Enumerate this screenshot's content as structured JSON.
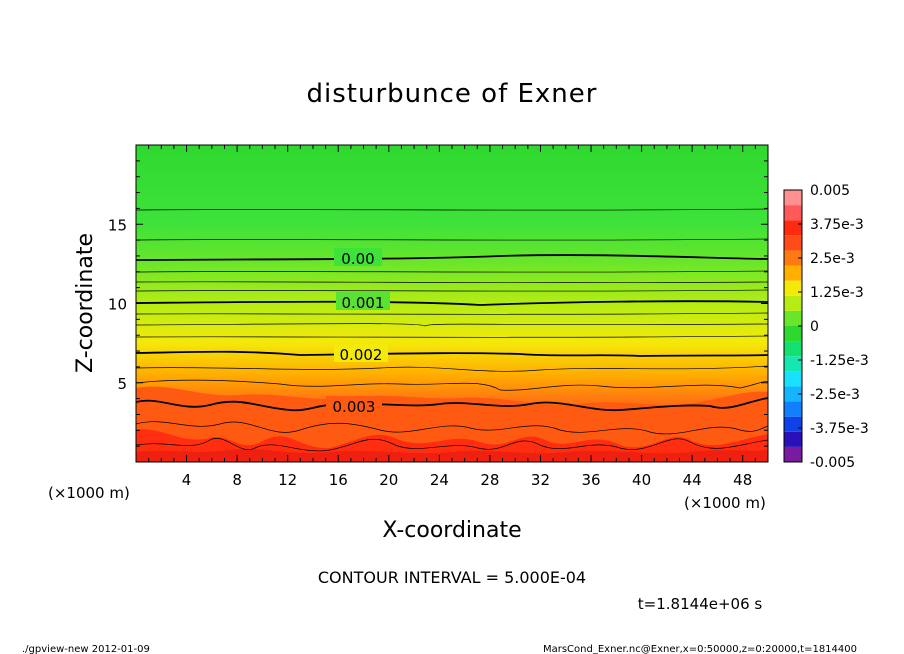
{
  "chart_data": {
    "type": "contour",
    "title": "disturbunce of Exner",
    "xlabel": "X-coordinate",
    "ylabel": "Z-coordinate",
    "x_unit": "(×1000 m)",
    "y_unit": "(×1000 m)",
    "xlim": [
      0,
      50
    ],
    "ylim": [
      0,
      20
    ],
    "x_ticks": [
      4,
      8,
      12,
      16,
      20,
      24,
      28,
      32,
      36,
      40,
      44,
      48
    ],
    "y_ticks": [
      5,
      10,
      15
    ],
    "colorbar": {
      "min": -0.005,
      "max": 0.005,
      "tick_labels": [
        "0.005",
        "3.75e-3",
        "2.5e-3",
        "1.25e-3",
        "0",
        "-1.25e-3",
        "-2.5e-3",
        "-3.75e-3",
        "-0.005"
      ]
    },
    "contour_labels": [
      {
        "text": "0.00",
        "level": 0.0,
        "x": 18.0,
        "z": 12.8
      },
      {
        "text": "0.001",
        "level": 0.001,
        "x": 18.0,
        "z": 10.0
      },
      {
        "text": "0.002",
        "level": 0.002,
        "x": 18.0,
        "z": 6.8
      },
      {
        "text": "0.003",
        "level": 0.003,
        "x": 17.0,
        "z": 3.5
      }
    ],
    "contour_interval_text": "CONTOUR INTERVAL = 5.000E-04",
    "time_text": "t=1.8144e+06 s"
  },
  "footer": {
    "left": "./gpview-new   2012-01-09",
    "right": "MarsCond_Exner.nc@Exner,x=0:50000,z=0:20000,t=1814400"
  }
}
